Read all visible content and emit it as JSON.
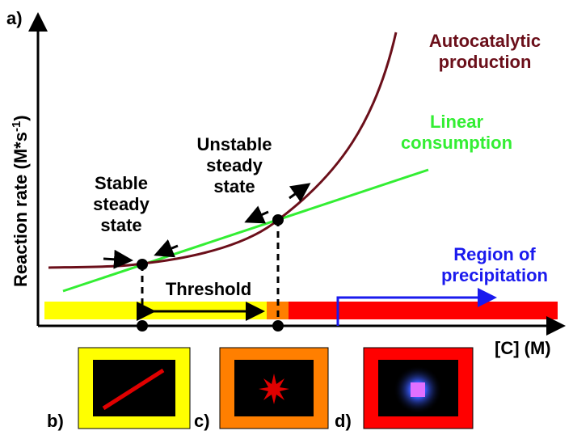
{
  "panel_labels": {
    "a": "a)",
    "b": "b)",
    "c": "c)",
    "d": "d)"
  },
  "y_axis": {
    "label_main": "Reaction rate (M*s",
    "label_sup": "-1",
    "label_end": ")"
  },
  "x_axis": {
    "label": "[C] (M)"
  },
  "curves": {
    "autocatalytic": [
      "Autocatalytic",
      "production"
    ],
    "linear": [
      "Linear",
      "consumption"
    ]
  },
  "states": {
    "unstable": [
      "Unstable",
      "steady",
      "state"
    ],
    "stable": [
      "Stable",
      "steady",
      "state"
    ]
  },
  "threshold": "Threshold",
  "region": [
    "Region of",
    "precipitation"
  ]
}
